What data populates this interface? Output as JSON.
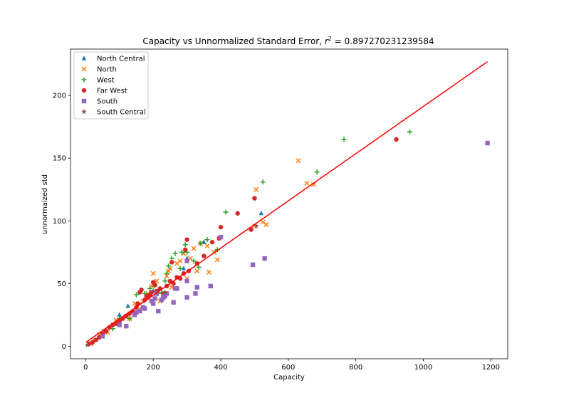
{
  "chart_data": {
    "type": "scatter",
    "title": "Capacity vs Unnormalized Standard Error,",
    "title_math": "r",
    "title_sup": "2",
    "title_value": " = 0.897270231239584",
    "xlabel": "Capacity",
    "ylabel": "unnormaized std",
    "xlim": [
      -45,
      1250
    ],
    "ylim": [
      -10,
      237
    ],
    "xticks": [
      0,
      200,
      400,
      600,
      800,
      1000,
      1200
    ],
    "yticks": [
      0,
      50,
      100,
      150,
      200
    ],
    "grid": false,
    "legend_position": "top-left",
    "fit_line": {
      "color": "#ff0000",
      "x": [
        0,
        1190
      ],
      "y": [
        3,
        227
      ]
    },
    "series": [
      {
        "name": "North Central",
        "marker": "triangle",
        "color": "#1f77b4",
        "points": [
          [
            100,
            25
          ],
          [
            125,
            32
          ],
          [
            200,
            44
          ],
          [
            290,
            62
          ],
          [
            300,
            70
          ],
          [
            350,
            83
          ],
          [
            520,
            106
          ]
        ]
      },
      {
        "name": "North",
        "marker": "x",
        "color": "#ff7f0e",
        "points": [
          [
            15,
            2
          ],
          [
            25,
            5
          ],
          [
            40,
            9
          ],
          [
            55,
            12
          ],
          [
            65,
            11
          ],
          [
            90,
            21
          ],
          [
            120,
            24
          ],
          [
            130,
            22
          ],
          [
            145,
            34
          ],
          [
            160,
            30
          ],
          [
            170,
            36
          ],
          [
            185,
            42
          ],
          [
            195,
            48
          ],
          [
            200,
            58
          ],
          [
            210,
            52
          ],
          [
            220,
            36
          ],
          [
            240,
            56
          ],
          [
            245,
            60
          ],
          [
            250,
            62
          ],
          [
            255,
            47
          ],
          [
            270,
            66
          ],
          [
            280,
            68
          ],
          [
            290,
            74
          ],
          [
            300,
            54
          ],
          [
            310,
            70
          ],
          [
            320,
            78
          ],
          [
            330,
            60
          ],
          [
            340,
            82
          ],
          [
            360,
            80
          ],
          [
            365,
            59
          ],
          [
            380,
            75
          ],
          [
            390,
            69
          ],
          [
            500,
            96
          ],
          [
            505,
            125
          ],
          [
            525,
            99
          ],
          [
            535,
            97
          ],
          [
            630,
            148
          ],
          [
            655,
            130
          ],
          [
            675,
            129
          ]
        ]
      },
      {
        "name": "West",
        "marker": "plus",
        "color": "#2ca02c",
        "points": [
          [
            60,
            13
          ],
          [
            80,
            14
          ],
          [
            100,
            22
          ],
          [
            130,
            22
          ],
          [
            150,
            41
          ],
          [
            175,
            42
          ],
          [
            190,
            46
          ],
          [
            205,
            48
          ],
          [
            215,
            42
          ],
          [
            225,
            43
          ],
          [
            235,
            52
          ],
          [
            240,
            58
          ],
          [
            245,
            64
          ],
          [
            255,
            70
          ],
          [
            265,
            74
          ],
          [
            280,
            62
          ],
          [
            285,
            75
          ],
          [
            295,
            81
          ],
          [
            300,
            75
          ],
          [
            320,
            68
          ],
          [
            335,
            63
          ],
          [
            340,
            82
          ],
          [
            360,
            85
          ],
          [
            390,
            77
          ],
          [
            415,
            107
          ],
          [
            525,
            131
          ],
          [
            685,
            139
          ],
          [
            765,
            165
          ],
          [
            960,
            171
          ]
        ]
      },
      {
        "name": "Far West",
        "marker": "circle",
        "color": "#d62728",
        "points": [
          [
            10,
            2
          ],
          [
            20,
            3
          ],
          [
            30,
            5
          ],
          [
            40,
            7
          ],
          [
            50,
            10
          ],
          [
            60,
            12
          ],
          [
            70,
            15
          ],
          [
            80,
            17
          ],
          [
            90,
            18
          ],
          [
            100,
            20
          ],
          [
            110,
            22
          ],
          [
            120,
            24
          ],
          [
            130,
            26
          ],
          [
            140,
            28
          ],
          [
            150,
            31
          ],
          [
            155,
            34
          ],
          [
            160,
            43
          ],
          [
            165,
            45
          ],
          [
            175,
            37
          ],
          [
            180,
            40
          ],
          [
            185,
            39
          ],
          [
            190,
            41
          ],
          [
            195,
            43
          ],
          [
            200,
            51
          ],
          [
            205,
            49
          ],
          [
            210,
            44
          ],
          [
            220,
            46
          ],
          [
            230,
            42
          ],
          [
            240,
            48
          ],
          [
            250,
            52
          ],
          [
            255,
            67
          ],
          [
            260,
            50
          ],
          [
            270,
            55
          ],
          [
            280,
            54
          ],
          [
            290,
            58
          ],
          [
            295,
            77
          ],
          [
            300,
            85
          ],
          [
            305,
            60
          ],
          [
            330,
            66
          ],
          [
            350,
            72
          ],
          [
            375,
            83
          ],
          [
            395,
            86
          ],
          [
            400,
            95
          ],
          [
            450,
            106
          ],
          [
            490,
            93
          ],
          [
            500,
            118
          ],
          [
            920,
            165
          ]
        ]
      },
      {
        "name": "South",
        "marker": "square",
        "color": "#9467bd",
        "points": [
          [
            50,
            8
          ],
          [
            100,
            17
          ],
          [
            120,
            16
          ],
          [
            145,
            25
          ],
          [
            150,
            27
          ],
          [
            160,
            28
          ],
          [
            170,
            31
          ],
          [
            175,
            30
          ],
          [
            195,
            36
          ],
          [
            200,
            34
          ],
          [
            205,
            38
          ],
          [
            210,
            42
          ],
          [
            215,
            28
          ],
          [
            225,
            37
          ],
          [
            230,
            39
          ],
          [
            235,
            40
          ],
          [
            240,
            42
          ],
          [
            260,
            35
          ],
          [
            265,
            46
          ],
          [
            270,
            46
          ],
          [
            300,
            39
          ],
          [
            300,
            52
          ],
          [
            300,
            68
          ],
          [
            325,
            42
          ],
          [
            330,
            47
          ],
          [
            370,
            48
          ],
          [
            400,
            87
          ],
          [
            495,
            65
          ],
          [
            530,
            70
          ],
          [
            1190,
            162
          ]
        ]
      },
      {
        "name": "South Central",
        "marker": "star",
        "color": "#8c564b",
        "points": [
          [
            5,
            1
          ],
          [
            235,
            43
          ],
          [
            505,
            96
          ]
        ]
      }
    ]
  }
}
